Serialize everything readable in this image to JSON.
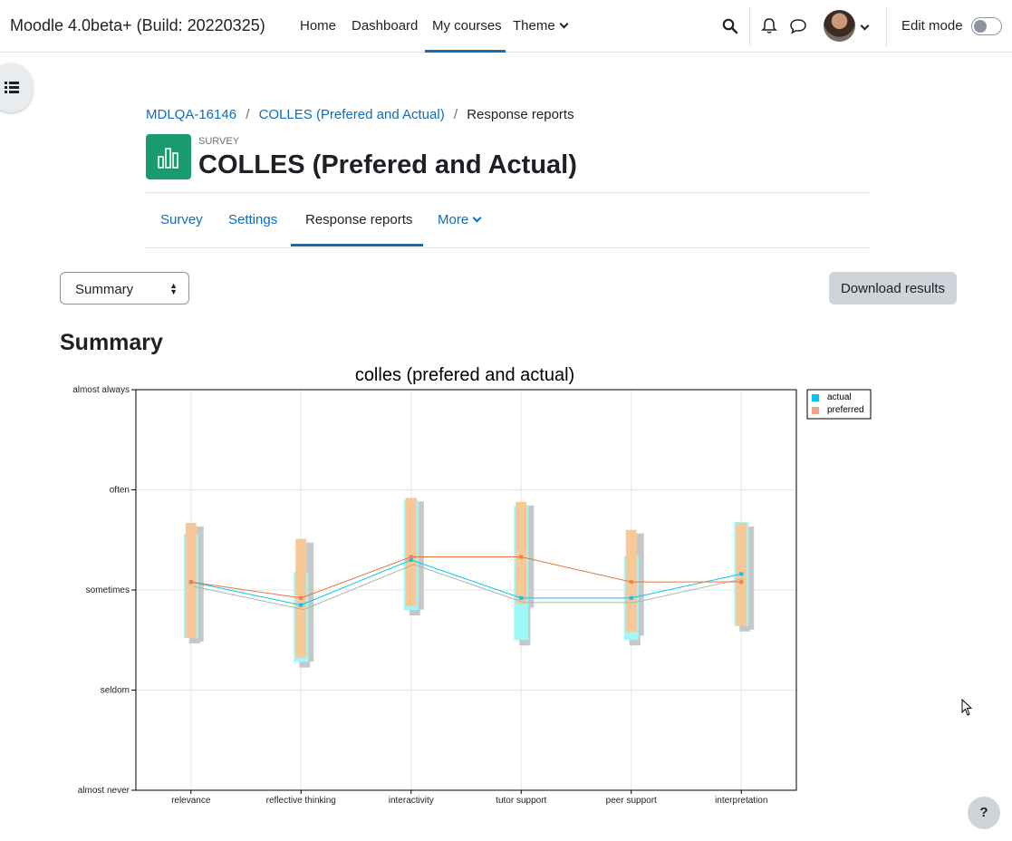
{
  "navbar": {
    "brand": "Moodle 4.0beta+ (Build: 20220325)",
    "links": [
      "Home",
      "Dashboard",
      "My courses",
      "Theme"
    ],
    "active": "My courses",
    "edit_mode_label": "Edit mode",
    "edit_mode_on": false
  },
  "breadcrumb": [
    "MDLQA-16146",
    "COLLES (Prefered and Actual)",
    "Response reports"
  ],
  "activity": {
    "type_label": "SURVEY",
    "title": "COLLES (Prefered and Actual)"
  },
  "tabs": [
    "Survey",
    "Settings",
    "Response reports",
    "More"
  ],
  "active_tab": "Response reports",
  "report_select": {
    "value": "Summary"
  },
  "download_label": "Download results",
  "section_heading": "Summary",
  "help_label": "?",
  "chart_data": {
    "type": "line",
    "title": "colles (prefered and actual)",
    "categories": [
      "relevance",
      "reflective thinking",
      "interactivity",
      "tutor support",
      "peer support",
      "interpretation"
    ],
    "y_ticks": [
      "almost never",
      "seldom",
      "sometimes",
      "often",
      "almost always"
    ],
    "ylim": [
      1,
      5
    ],
    "grid": true,
    "legend_position": "top-right",
    "colors": {
      "actual": "#00c8f5",
      "preferred": "#f4a480",
      "actual_bar": "#9ff8f8",
      "preferred_bar": "#f9c898",
      "shadow": "#c4c8c8"
    },
    "series": [
      {
        "name": "actual",
        "values": [
          3.08,
          2.85,
          3.3,
          2.92,
          2.92,
          3.16
        ],
        "low": [
          2.52,
          2.28,
          2.8,
          2.5,
          2.5,
          2.64
        ],
        "high": [
          3.56,
          3.18,
          3.9,
          3.84,
          3.34,
          3.68
        ]
      },
      {
        "name": "preferred",
        "values": [
          3.08,
          2.92,
          3.33,
          3.33,
          3.08,
          3.08
        ],
        "low": [
          2.52,
          2.32,
          2.84,
          2.86,
          2.58,
          2.64
        ],
        "high": [
          3.67,
          3.51,
          3.92,
          3.88,
          3.6,
          3.67
        ]
      }
    ]
  }
}
